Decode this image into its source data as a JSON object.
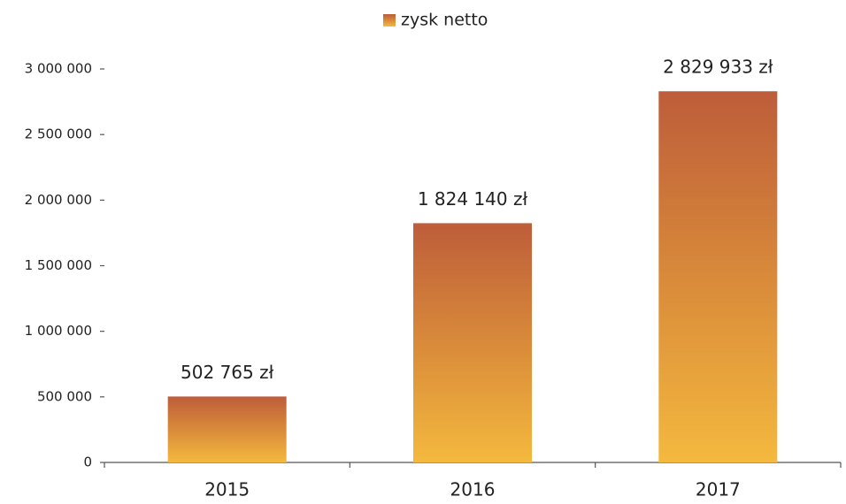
{
  "chart_data": {
    "type": "bar",
    "legend": "top",
    "series": [
      {
        "name": "zysk netto",
        "color": "#d0783a",
        "values": [
          502765,
          1824140,
          2829933
        ],
        "value_labels": [
          "502 765 zł",
          "1 824 140 zł",
          "2 829 933 zł"
        ]
      }
    ],
    "categories": [
      "2015",
      "2016",
      "2017"
    ],
    "ylim": [
      0,
      3000000
    ],
    "yticks": [
      0,
      {
        "value": 500000,
        "label": "500 000"
      },
      {
        "value": 1000000,
        "label": "1 000 000"
      },
      {
        "value": 1500000,
        "label": "1 500 000"
      },
      {
        "value": 2000000,
        "label": "2 000 000"
      },
      {
        "value": 2500000,
        "label": "2 500 000"
      },
      {
        "value": 3000000,
        "label": "3 000 000"
      }
    ]
  }
}
